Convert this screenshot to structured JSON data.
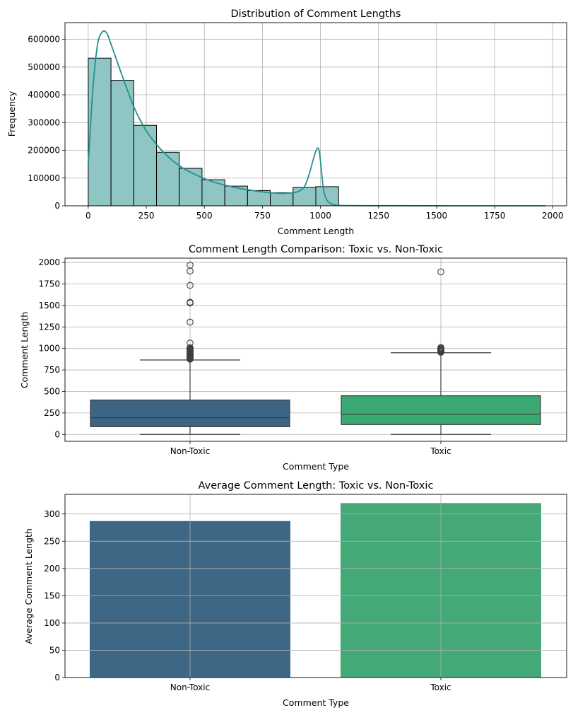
{
  "chart_data": [
    {
      "type": "bar",
      "subtype": "histogram-with-kde",
      "title": "Distribution of Comment Lengths",
      "xlabel": "Comment Length",
      "ylabel": "Frequency",
      "xlim": [
        -100,
        2060
      ],
      "ylim": [
        0,
        660000
      ],
      "xticks": [
        0,
        250,
        500,
        750,
        1000,
        1250,
        1500,
        1750,
        2000
      ],
      "yticks": [
        0,
        100000,
        200000,
        300000,
        400000,
        500000,
        600000
      ],
      "grid": true,
      "bar_color": "#8fc6c3",
      "line_color": "#21918c",
      "bins": [
        {
          "x0": 0,
          "x1": 98,
          "count": 532000
        },
        {
          "x0": 98,
          "x1": 196,
          "count": 452000
        },
        {
          "x0": 196,
          "x1": 294,
          "count": 290000
        },
        {
          "x0": 294,
          "x1": 392,
          "count": 193000
        },
        {
          "x0": 392,
          "x1": 490,
          "count": 135000
        },
        {
          "x0": 490,
          "x1": 588,
          "count": 94000
        },
        {
          "x0": 588,
          "x1": 686,
          "count": 71000
        },
        {
          "x0": 686,
          "x1": 784,
          "count": 55000
        },
        {
          "x0": 784,
          "x1": 882,
          "count": 47000
        },
        {
          "x0": 882,
          "x1": 980,
          "count": 66000
        },
        {
          "x0": 980,
          "x1": 1078,
          "count": 69000
        }
      ],
      "kde": {
        "x": [
          0,
          20,
          40,
          60,
          80,
          100,
          150,
          200,
          250,
          300,
          350,
          400,
          450,
          500,
          550,
          600,
          650,
          700,
          750,
          800,
          850,
          900,
          930,
          950,
          970,
          985,
          995,
          1005,
          1015,
          1030,
          1050,
          1080,
          1200,
          1500,
          1970
        ],
        "y": [
          148000,
          420000,
          580000,
          626000,
          622000,
          578000,
          460000,
          350000,
          270000,
          215000,
          172000,
          140000,
          117000,
          98000,
          83000,
          72000,
          63000,
          56000,
          50000,
          46000,
          45000,
          50000,
          68000,
          110000,
          170000,
          206000,
          195000,
          120000,
          50000,
          18000,
          6000,
          1500,
          500,
          100,
          0
        ]
      }
    },
    {
      "type": "box",
      "title": "Comment Length Comparison: Toxic vs. Non-Toxic",
      "xlabel": "Comment Type",
      "ylabel": "Comment Length",
      "categories": [
        "Non-Toxic",
        "Toxic"
      ],
      "ylim": [
        -80,
        2050
      ],
      "yticks": [
        0,
        250,
        500,
        750,
        1000,
        1250,
        1500,
        1750,
        2000
      ],
      "grid": true,
      "colors": [
        "#3b6583",
        "#3aa873"
      ],
      "boxes": [
        {
          "name": "Non-Toxic",
          "whisker_low": 0,
          "q1": 90,
          "median": 195,
          "q3": 400,
          "whisker_high": 866,
          "outliers": [
            875,
            880,
            886,
            892,
            898,
            905,
            912,
            920,
            928,
            936,
            944,
            952,
            960,
            968,
            976,
            984,
            992,
            1000,
            1008,
            1063,
            1306,
            1528,
            1538,
            1734,
            1900,
            1968
          ]
        },
        {
          "name": "Toxic",
          "whisker_low": 0,
          "q1": 115,
          "median": 235,
          "q3": 450,
          "whisker_high": 950,
          "outliers": [
            955,
            962,
            970,
            978,
            986,
            994,
            1002,
            1010,
            1890
          ]
        }
      ]
    },
    {
      "type": "bar",
      "title": "Average Comment Length: Toxic vs. Non-Toxic",
      "xlabel": "Comment Type",
      "ylabel": "Average Comment Length",
      "categories": [
        "Non-Toxic",
        "Toxic"
      ],
      "values": [
        287,
        320
      ],
      "ylim": [
        0,
        336
      ],
      "yticks": [
        0,
        50,
        100,
        150,
        200,
        250,
        300
      ],
      "grid": true,
      "colors": [
        "#3e6785",
        "#44a877"
      ]
    }
  ]
}
